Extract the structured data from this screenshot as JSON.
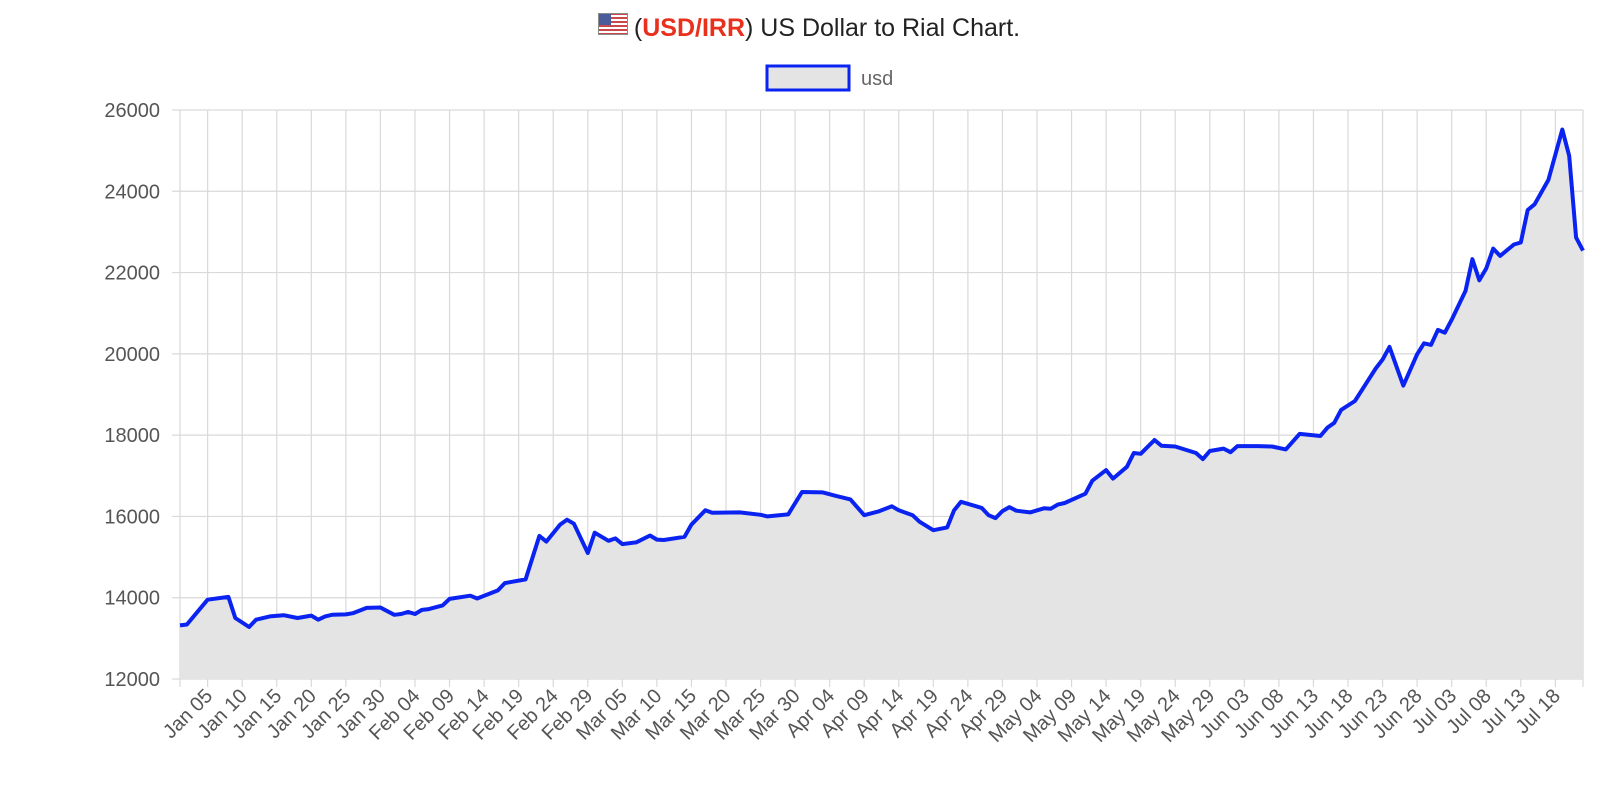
{
  "title": {
    "prefix": "(",
    "pair": "USD/IRR",
    "suffix": ") US Dollar to Rial Chart.",
    "icon": "us-flag-icon"
  },
  "colors": {
    "line": "#0a23f0",
    "fill": "#e4e4e4",
    "grid": "#d9d9d9",
    "pair_text": "#e8301c"
  },
  "chart_data": {
    "type": "area",
    "title": "(USD/IRR) US Dollar to Rial Chart.",
    "xlabel": "",
    "ylabel": "",
    "ylim": [
      12000,
      26000
    ],
    "yticks": [
      12000,
      14000,
      16000,
      18000,
      20000,
      22000,
      24000,
      26000
    ],
    "grid": true,
    "legend": "top",
    "x_tick_labels": [
      "Jan 05",
      "Jan 10",
      "Jan 15",
      "Jan 20",
      "Jan 25",
      "Jan 30",
      "Feb 04",
      "Feb 09",
      "Feb 14",
      "Feb 19",
      "Feb 24",
      "Feb 29",
      "Mar 05",
      "Mar 10",
      "Mar 15",
      "Mar 20",
      "Mar 25",
      "Mar 30",
      "Apr 04",
      "Apr 09",
      "Apr 14",
      "Apr 19",
      "Apr 24",
      "Apr 29",
      "May 04",
      "May 09",
      "May 14",
      "May 19",
      "May 24",
      "May 29",
      "Jun 03",
      "Jun 08",
      "Jun 13",
      "Jun 18",
      "Jun 23",
      "Jun 28",
      "Jul 03",
      "Jul 08",
      "Jul 13",
      "Jul 18"
    ],
    "series": [
      {
        "name": "usd",
        "points": [
          [
            "2024-01-01",
            13320
          ],
          [
            "2024-01-02",
            13340
          ],
          [
            "2024-01-05",
            13950
          ],
          [
            "2024-01-08",
            14020
          ],
          [
            "2024-01-09",
            13500
          ],
          [
            "2024-01-11",
            13280
          ],
          [
            "2024-01-12",
            13460
          ],
          [
            "2024-01-14",
            13540
          ],
          [
            "2024-01-16",
            13570
          ],
          [
            "2024-01-18",
            13500
          ],
          [
            "2024-01-20",
            13560
          ],
          [
            "2024-01-21",
            13460
          ],
          [
            "2024-01-22",
            13540
          ],
          [
            "2024-01-23",
            13580
          ],
          [
            "2024-01-25",
            13590
          ],
          [
            "2024-01-26",
            13620
          ],
          [
            "2024-01-28",
            13750
          ],
          [
            "2024-01-30",
            13760
          ],
          [
            "2024-02-01",
            13580
          ],
          [
            "2024-02-02",
            13600
          ],
          [
            "2024-02-03",
            13650
          ],
          [
            "2024-02-04",
            13600
          ],
          [
            "2024-02-05",
            13700
          ],
          [
            "2024-02-06",
            13720
          ],
          [
            "2024-02-08",
            13810
          ],
          [
            "2024-02-09",
            13970
          ],
          [
            "2024-02-12",
            14050
          ],
          [
            "2024-02-13",
            13980
          ],
          [
            "2024-02-16",
            14180
          ],
          [
            "2024-02-17",
            14360
          ],
          [
            "2024-02-20",
            14450
          ],
          [
            "2024-02-22",
            15520
          ],
          [
            "2024-02-23",
            15380
          ],
          [
            "2024-02-25",
            15800
          ],
          [
            "2024-02-26",
            15920
          ],
          [
            "2024-02-27",
            15820
          ],
          [
            "2024-02-29",
            15100
          ],
          [
            "2024-03-01",
            15600
          ],
          [
            "2024-03-03",
            15400
          ],
          [
            "2024-03-04",
            15460
          ],
          [
            "2024-03-05",
            15320
          ],
          [
            "2024-03-07",
            15360
          ],
          [
            "2024-03-09",
            15530
          ],
          [
            "2024-03-10",
            15430
          ],
          [
            "2024-03-11",
            15420
          ],
          [
            "2024-03-14",
            15500
          ],
          [
            "2024-03-15",
            15800
          ],
          [
            "2024-03-17",
            16150
          ],
          [
            "2024-03-18",
            16090
          ],
          [
            "2024-03-22",
            16100
          ],
          [
            "2024-03-25",
            16040
          ],
          [
            "2024-03-26",
            16000
          ],
          [
            "2024-03-29",
            16050
          ],
          [
            "2024-03-31",
            16600
          ],
          [
            "2024-04-03",
            16590
          ],
          [
            "2024-04-05",
            16500
          ],
          [
            "2024-04-07",
            16420
          ],
          [
            "2024-04-09",
            16030
          ],
          [
            "2024-04-11",
            16120
          ],
          [
            "2024-04-13",
            16250
          ],
          [
            "2024-04-14",
            16150
          ],
          [
            "2024-04-16",
            16030
          ],
          [
            "2024-04-17",
            15870
          ],
          [
            "2024-04-19",
            15660
          ],
          [
            "2024-04-21",
            15730
          ],
          [
            "2024-04-22",
            16150
          ],
          [
            "2024-04-23",
            16360
          ],
          [
            "2024-04-26",
            16210
          ],
          [
            "2024-04-27",
            16030
          ],
          [
            "2024-04-28",
            15960
          ],
          [
            "2024-04-29",
            16130
          ],
          [
            "2024-04-30",
            16230
          ],
          [
            "2024-05-01",
            16140
          ],
          [
            "2024-05-03",
            16100
          ],
          [
            "2024-05-05",
            16200
          ],
          [
            "2024-05-06",
            16190
          ],
          [
            "2024-05-07",
            16290
          ],
          [
            "2024-05-08",
            16330
          ],
          [
            "2024-05-11",
            16560
          ],
          [
            "2024-05-12",
            16880
          ],
          [
            "2024-05-14",
            17140
          ],
          [
            "2024-05-15",
            16930
          ],
          [
            "2024-05-17",
            17220
          ],
          [
            "2024-05-18",
            17560
          ],
          [
            "2024-05-19",
            17540
          ],
          [
            "2024-05-21",
            17880
          ],
          [
            "2024-05-22",
            17740
          ],
          [
            "2024-05-24",
            17720
          ],
          [
            "2024-05-27",
            17560
          ],
          [
            "2024-05-28",
            17410
          ],
          [
            "2024-05-29",
            17610
          ],
          [
            "2024-05-31",
            17670
          ],
          [
            "2024-06-01",
            17580
          ],
          [
            "2024-06-02",
            17730
          ],
          [
            "2024-06-05",
            17730
          ],
          [
            "2024-06-07",
            17720
          ],
          [
            "2024-06-09",
            17650
          ],
          [
            "2024-06-11",
            18030
          ],
          [
            "2024-06-14",
            17980
          ],
          [
            "2024-06-15",
            18180
          ],
          [
            "2024-06-16",
            18300
          ],
          [
            "2024-06-17",
            18620
          ],
          [
            "2024-06-19",
            18840
          ],
          [
            "2024-06-22",
            19640
          ],
          [
            "2024-06-23",
            19860
          ],
          [
            "2024-06-24",
            20170
          ],
          [
            "2024-06-26",
            19220
          ],
          [
            "2024-06-28",
            19990
          ],
          [
            "2024-06-29",
            20260
          ],
          [
            "2024-06-30",
            20220
          ],
          [
            "2024-07-01",
            20590
          ],
          [
            "2024-07-02",
            20520
          ],
          [
            "2024-07-03",
            20840
          ],
          [
            "2024-07-05",
            21550
          ],
          [
            "2024-07-06",
            22330
          ],
          [
            "2024-07-07",
            21810
          ],
          [
            "2024-07-08",
            22100
          ],
          [
            "2024-07-09",
            22590
          ],
          [
            "2024-07-10",
            22410
          ],
          [
            "2024-07-12",
            22690
          ],
          [
            "2024-07-13",
            22740
          ],
          [
            "2024-07-14",
            23540
          ],
          [
            "2024-07-15",
            23680
          ],
          [
            "2024-07-17",
            24280
          ],
          [
            "2024-07-19",
            25520
          ],
          [
            "2024-07-20",
            24870
          ],
          [
            "2024-07-21",
            22860
          ],
          [
            "2024-07-22",
            22540
          ]
        ]
      }
    ]
  }
}
